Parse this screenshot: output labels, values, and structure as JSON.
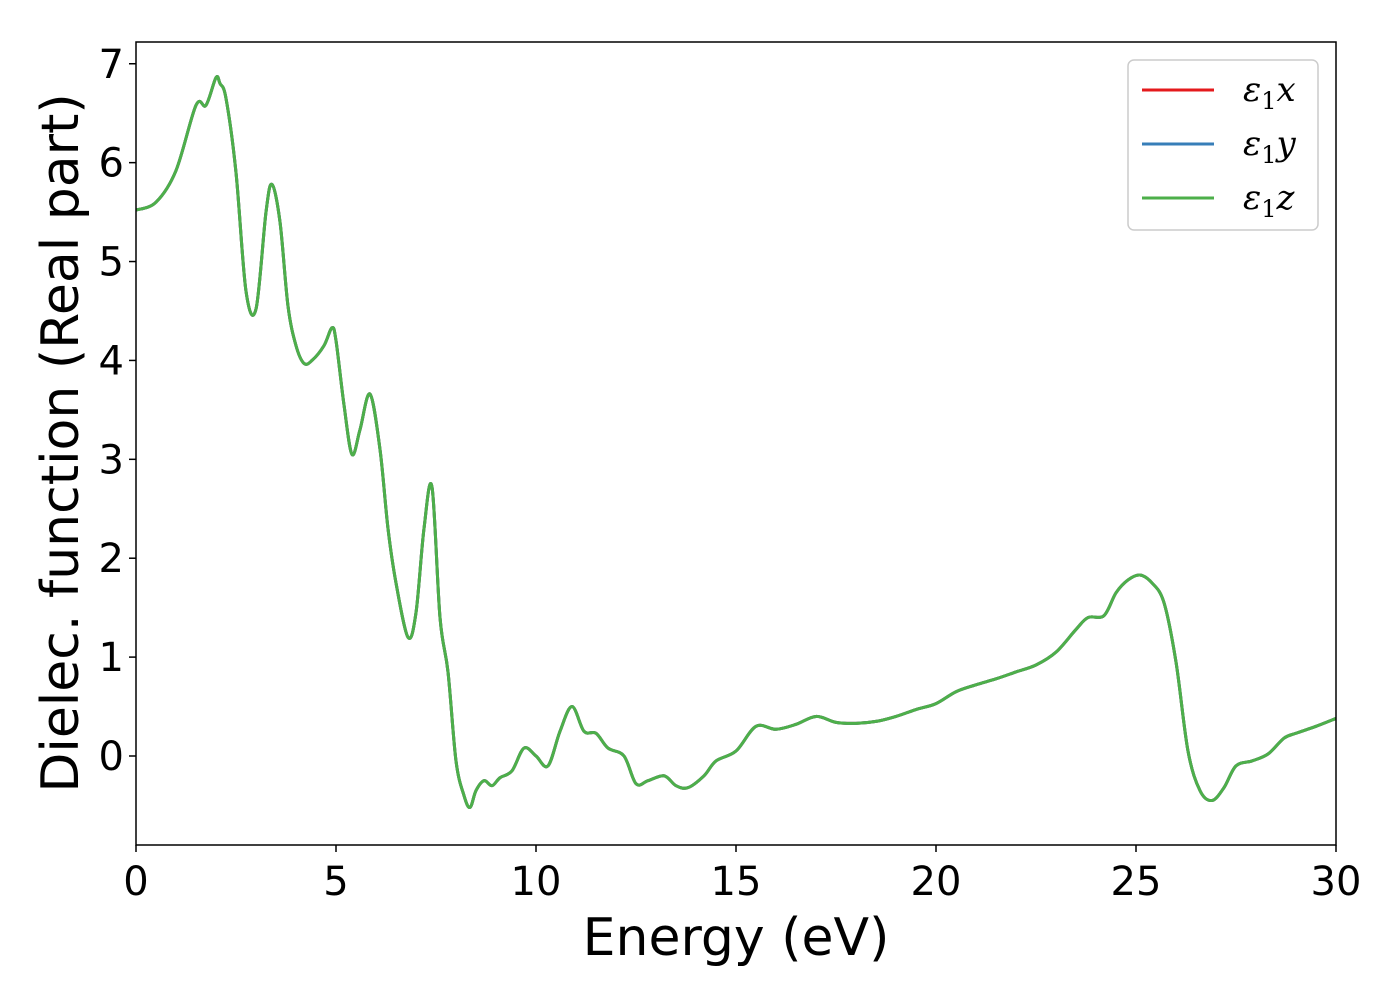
{
  "chart_data": {
    "type": "line",
    "title": "",
    "xlabel": "Energy (eV)",
    "ylabel": "Dielec. function (Real part)",
    "xlim": [
      0,
      30
    ],
    "ylim": [
      -0.9,
      7.22
    ],
    "xticks": [
      0,
      5,
      10,
      15,
      20,
      25,
      30
    ],
    "yticks": [
      0,
      1,
      2,
      3,
      4,
      5,
      6,
      7
    ],
    "grid": false,
    "legend_position": "top-right",
    "x": [
      0,
      0.5,
      1.0,
      1.5,
      1.75,
      2.0,
      2.1,
      2.25,
      2.5,
      2.75,
      3.0,
      3.25,
      3.4,
      3.6,
      3.8,
      4.0,
      4.2,
      4.4,
      4.7,
      4.9,
      5.0,
      5.2,
      5.4,
      5.6,
      5.85,
      6.1,
      6.3,
      6.5,
      6.8,
      7.0,
      7.2,
      7.4,
      7.6,
      7.8,
      8.0,
      8.2,
      8.35,
      8.5,
      8.7,
      8.9,
      9.1,
      9.4,
      9.7,
      10.0,
      10.3,
      10.6,
      10.9,
      11.2,
      11.5,
      11.8,
      12.2,
      12.5,
      12.8,
      13.2,
      13.5,
      13.8,
      14.2,
      14.5,
      15.0,
      15.5,
      16.0,
      16.5,
      17.0,
      17.5,
      18.0,
      18.5,
      19.0,
      19.5,
      20.0,
      20.5,
      21.0,
      21.5,
      22.0,
      22.5,
      23.0,
      23.5,
      23.8,
      24.2,
      24.5,
      24.8,
      25.1,
      25.4,
      25.7,
      26.0,
      26.3,
      26.6,
      26.9,
      27.2,
      27.5,
      27.9,
      28.3,
      28.7,
      29.0,
      29.5,
      30.0
    ],
    "series": [
      {
        "name": "ε1x",
        "color": "#e41a1c",
        "y": [
          5.52,
          5.6,
          5.92,
          6.58,
          6.58,
          6.86,
          6.8,
          6.65,
          5.9,
          4.7,
          4.52,
          5.5,
          5.78,
          5.4,
          4.55,
          4.15,
          3.97,
          4.0,
          4.15,
          4.33,
          4.2,
          3.55,
          3.05,
          3.3,
          3.66,
          3.1,
          2.3,
          1.75,
          1.2,
          1.45,
          2.3,
          2.72,
          1.4,
          0.85,
          -0.05,
          -0.4,
          -0.52,
          -0.35,
          -0.25,
          -0.3,
          -0.22,
          -0.15,
          0.08,
          0.0,
          -0.1,
          0.25,
          0.5,
          0.25,
          0.23,
          0.08,
          0.0,
          -0.28,
          -0.25,
          -0.2,
          -0.3,
          -0.32,
          -0.2,
          -0.05,
          0.05,
          0.3,
          0.27,
          0.32,
          0.4,
          0.34,
          0.33,
          0.35,
          0.4,
          0.47,
          0.53,
          0.65,
          0.72,
          0.78,
          0.85,
          0.92,
          1.05,
          1.28,
          1.4,
          1.42,
          1.65,
          1.78,
          1.83,
          1.75,
          1.55,
          0.95,
          0.05,
          -0.35,
          -0.45,
          -0.32,
          -0.1,
          -0.05,
          0.02,
          0.18,
          0.23,
          0.3,
          0.38
        ]
      },
      {
        "name": "ε1y",
        "color": "#377eb8",
        "y": [
          5.52,
          5.6,
          5.92,
          6.58,
          6.58,
          6.86,
          6.8,
          6.65,
          5.9,
          4.7,
          4.52,
          5.5,
          5.78,
          5.4,
          4.55,
          4.15,
          3.97,
          4.0,
          4.15,
          4.33,
          4.2,
          3.55,
          3.05,
          3.3,
          3.66,
          3.1,
          2.3,
          1.75,
          1.2,
          1.45,
          2.3,
          2.72,
          1.4,
          0.85,
          -0.05,
          -0.4,
          -0.52,
          -0.35,
          -0.25,
          -0.3,
          -0.22,
          -0.15,
          0.08,
          0.0,
          -0.1,
          0.25,
          0.5,
          0.25,
          0.23,
          0.08,
          0.0,
          -0.28,
          -0.25,
          -0.2,
          -0.3,
          -0.32,
          -0.2,
          -0.05,
          0.05,
          0.3,
          0.27,
          0.32,
          0.4,
          0.34,
          0.33,
          0.35,
          0.4,
          0.47,
          0.53,
          0.65,
          0.72,
          0.78,
          0.85,
          0.92,
          1.05,
          1.28,
          1.4,
          1.42,
          1.65,
          1.78,
          1.83,
          1.75,
          1.55,
          0.95,
          0.05,
          -0.35,
          -0.45,
          -0.32,
          -0.1,
          -0.05,
          0.02,
          0.18,
          0.23,
          0.3,
          0.38
        ]
      },
      {
        "name": "ε1z",
        "color": "#4daf4a",
        "y": [
          5.52,
          5.6,
          5.92,
          6.58,
          6.58,
          6.86,
          6.8,
          6.65,
          5.9,
          4.7,
          4.52,
          5.5,
          5.78,
          5.4,
          4.55,
          4.15,
          3.97,
          4.0,
          4.15,
          4.33,
          4.2,
          3.55,
          3.05,
          3.3,
          3.66,
          3.1,
          2.3,
          1.75,
          1.2,
          1.45,
          2.3,
          2.72,
          1.4,
          0.85,
          -0.05,
          -0.4,
          -0.52,
          -0.35,
          -0.25,
          -0.3,
          -0.22,
          -0.15,
          0.08,
          0.0,
          -0.1,
          0.25,
          0.5,
          0.25,
          0.23,
          0.08,
          0.0,
          -0.28,
          -0.25,
          -0.2,
          -0.3,
          -0.32,
          -0.2,
          -0.05,
          0.05,
          0.3,
          0.27,
          0.32,
          0.4,
          0.34,
          0.33,
          0.35,
          0.4,
          0.47,
          0.53,
          0.65,
          0.72,
          0.78,
          0.85,
          0.92,
          1.05,
          1.28,
          1.4,
          1.42,
          1.65,
          1.78,
          1.83,
          1.75,
          1.55,
          0.95,
          0.05,
          -0.35,
          -0.45,
          -0.32,
          -0.1,
          -0.05,
          0.02,
          0.18,
          0.23,
          0.3,
          0.38
        ]
      }
    ],
    "legend": [
      {
        "base": "ε",
        "sub": "1",
        "var": "x",
        "color": "#e41a1c"
      },
      {
        "base": "ε",
        "sub": "1",
        "var": "y",
        "color": "#377eb8"
      },
      {
        "base": "ε",
        "sub": "1",
        "var": "z",
        "color": "#4daf4a"
      }
    ]
  }
}
